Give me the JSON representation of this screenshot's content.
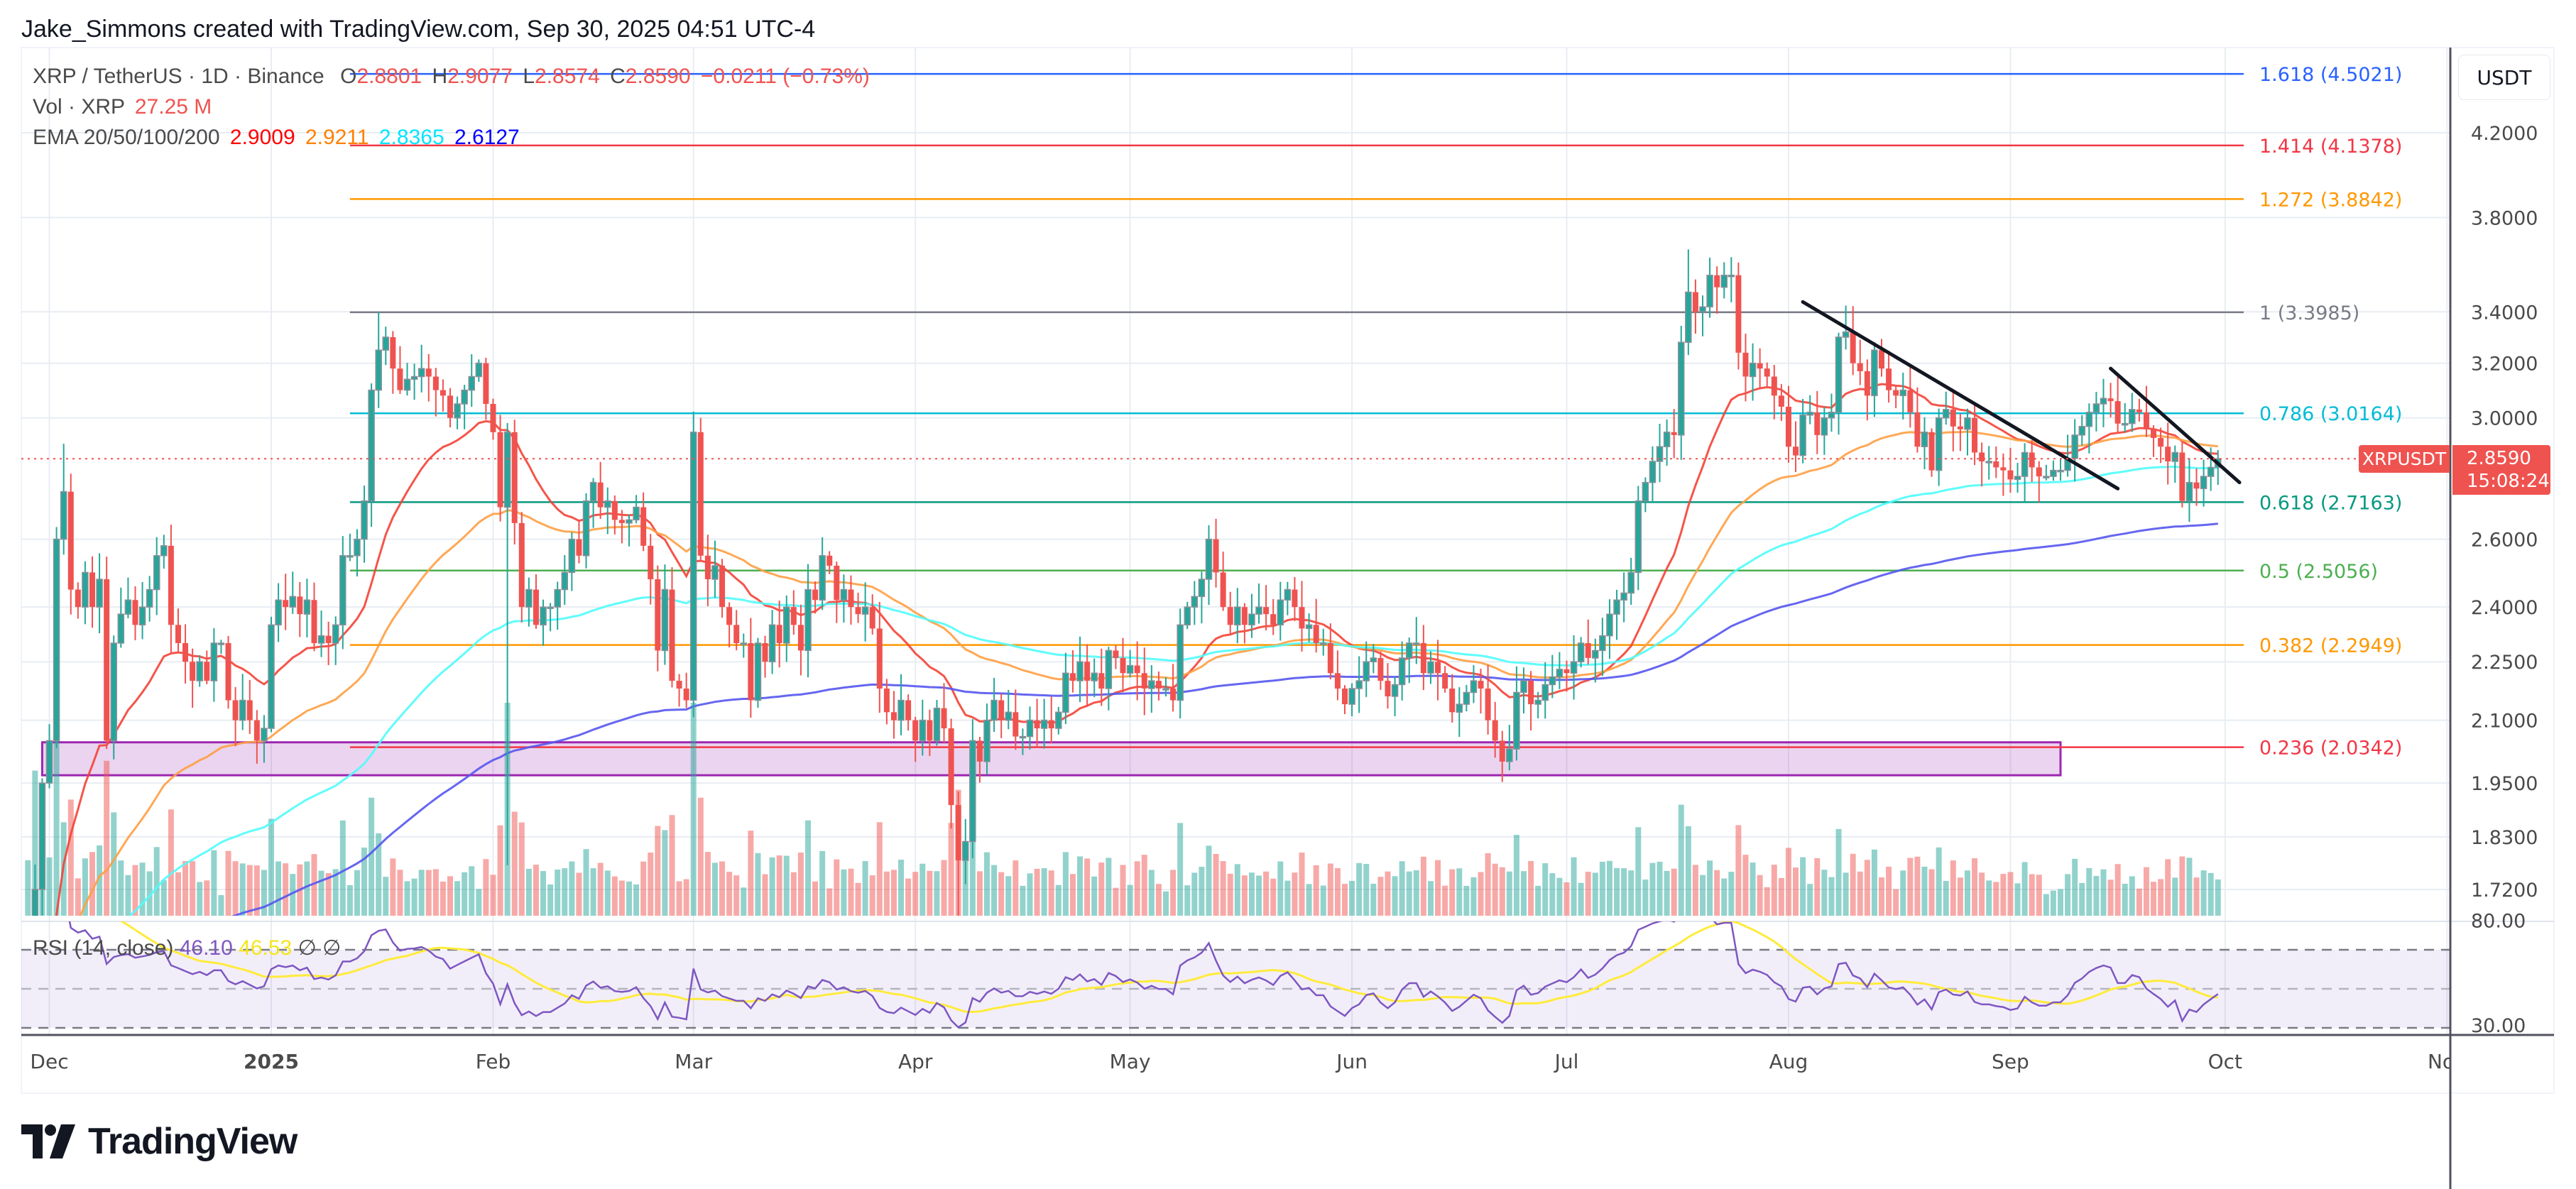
{
  "credit": "Jake_Simmons created with TradingView.com, Sep 30, 2025 04:51 UTC-4",
  "legend": {
    "symbol": "XRP / TetherUS · 1D · Binance",
    "ohlc": [
      {
        "k": "O",
        "v": "2.8801"
      },
      {
        "k": "H",
        "v": "2.9077"
      },
      {
        "k": "L",
        "v": "2.8574"
      },
      {
        "k": "C",
        "v": "2.8590"
      }
    ],
    "change": "−0.0211 (−0.73%)",
    "vol_label": "Vol · XRP",
    "vol_value": "27.25 M",
    "ema_label": "EMA 20/50/100/200",
    "ema_values": [
      {
        "v": "2.9009",
        "color": "#ff0000"
      },
      {
        "v": "2.9211",
        "color": "#ff8000"
      },
      {
        "v": "2.8365",
        "color": "#00e5ff"
      },
      {
        "v": "2.6127",
        "color": "#0000ff"
      }
    ]
  },
  "rsi_legend": {
    "label": "RSI (14, close)",
    "rsi": "46.10",
    "ma": "46.53",
    "n1": "∅",
    "n2": "∅"
  },
  "axis": {
    "currency": "USDT",
    "symbol_tag": "XRPUSDT",
    "last_price": "2.8590",
    "countdown": "15:08:24"
  },
  "logo": "TradingView",
  "colors": {
    "up": "#26a69a",
    "down": "#ef5350",
    "ema20": "#f44336",
    "ema50": "#ff9f43",
    "ema100": "#4ffcfc",
    "ema200": "#5555f0",
    "rsi": "#7e57c2",
    "rsi_ma": "#ffeb3b"
  },
  "chart_data": {
    "type": "candlestick",
    "y_scale": "log",
    "ylim": [
      1.65,
      4.6
    ],
    "grid": true,
    "y_ticks": [
      "4.2000",
      "3.8000",
      "3.4000",
      "3.2000",
      "3.0000",
      "2.6000",
      "2.4000",
      "2.2500",
      "2.1000",
      "1.9500",
      "1.8300",
      "1.7200"
    ],
    "x_ticks": [
      {
        "label": "Dec",
        "date": "2024-12-01"
      },
      {
        "label": "2025",
        "date": "2025-01-01"
      },
      {
        "label": "Feb",
        "date": "2025-02-01"
      },
      {
        "label": "Mar",
        "date": "2025-03-01"
      },
      {
        "label": "Apr",
        "date": "2025-04-01"
      },
      {
        "label": "May",
        "date": "2025-05-01"
      },
      {
        "label": "Jun",
        "date": "2025-06-01"
      },
      {
        "label": "Jul",
        "date": "2025-07-01"
      },
      {
        "label": "Aug",
        "date": "2025-08-01"
      },
      {
        "label": "Sep",
        "date": "2025-09-01"
      },
      {
        "label": "Oct",
        "date": "2025-10-01"
      },
      {
        "label": "Nov",
        "date": "2025-11-01"
      }
    ],
    "start": "2024-11-28",
    "close": [
      1.45,
      1.72,
      1.95,
      2.05,
      2.6,
      2.75,
      2.45,
      2.4,
      2.5,
      2.4,
      2.48,
      2.05,
      2.3,
      2.38,
      2.42,
      2.35,
      2.4,
      2.45,
      2.55,
      2.58,
      2.35,
      2.3,
      2.25,
      2.2,
      2.25,
      2.2,
      2.3,
      2.3,
      2.15,
      2.1,
      2.15,
      2.1,
      2.05,
      2.08,
      2.35,
      2.42,
      2.4,
      2.43,
      2.38,
      2.42,
      2.3,
      2.32,
      2.3,
      2.35,
      2.55,
      2.55,
      2.6,
      2.72,
      3.1,
      3.25,
      3.3,
      3.18,
      3.1,
      3.14,
      3.15,
      3.18,
      3.15,
      3.1,
      3.08,
      3.0,
      3.05,
      3.1,
      3.15,
      3.2,
      3.05,
      2.95,
      2.7,
      2.95,
      2.65,
      2.4,
      2.45,
      2.35,
      2.4,
      2.4,
      2.45,
      2.5,
      2.6,
      2.55,
      2.72,
      2.78,
      2.7,
      2.72,
      2.66,
      2.65,
      2.66,
      2.7,
      2.58,
      2.48,
      2.28,
      2.45,
      2.2,
      2.18,
      2.15,
      2.95,
      2.55,
      2.48,
      2.52,
      2.4,
      2.35,
      2.3,
      2.3,
      2.15,
      2.3,
      2.25,
      2.35,
      2.3,
      2.4,
      2.35,
      2.28,
      2.45,
      2.42,
      2.55,
      2.52,
      2.42,
      2.45,
      2.4,
      2.38,
      2.4,
      2.34,
      2.18,
      2.12,
      2.1,
      2.15,
      2.1,
      2.05,
      2.1,
      2.05,
      2.13,
      2.08,
      1.9,
      1.78,
      1.82,
      2.05,
      2.0,
      2.1,
      2.15,
      2.1,
      2.12,
      2.06,
      2.06,
      2.1,
      2.08,
      2.1,
      2.08,
      2.12,
      2.22,
      2.2,
      2.25,
      2.2,
      2.22,
      2.18,
      2.28,
      2.26,
      2.22,
      2.24,
      2.22,
      2.18,
      2.2,
      2.18,
      2.18,
      2.15,
      2.35,
      2.4,
      2.43,
      2.48,
      2.6,
      2.5,
      2.4,
      2.35,
      2.4,
      2.35,
      2.38,
      2.4,
      2.38,
      2.35,
      2.42,
      2.45,
      2.4,
      2.34,
      2.35,
      2.3,
      2.3,
      2.22,
      2.18,
      2.14,
      2.18,
      2.2,
      2.25,
      2.26,
      2.2,
      2.16,
      2.19,
      2.26,
      2.3,
      2.3,
      2.22,
      2.25,
      2.22,
      2.18,
      2.12,
      2.14,
      2.17,
      2.2,
      2.18,
      2.1,
      2.05,
      2.0,
      2.03,
      2.17,
      2.2,
      2.14,
      2.15,
      2.19,
      2.21,
      2.23,
      2.22,
      2.25,
      2.3,
      2.26,
      2.28,
      2.32,
      2.38,
      2.42,
      2.44,
      2.5,
      2.72,
      2.78,
      2.85,
      2.9,
      2.95,
      2.94,
      3.28,
      3.48,
      3.4,
      3.42,
      3.55,
      3.5,
      3.55,
      3.55,
      3.24,
      3.15,
      3.2,
      3.18,
      3.15,
      3.08,
      3.04,
      2.9,
      2.87,
      3.01,
      3.02,
      2.94,
      3.0,
      3.02,
      3.3,
      3.32,
      3.2,
      3.17,
      3.08,
      3.25,
      3.18,
      3.1,
      3.08,
      3.1,
      3.02,
      2.9,
      2.95,
      2.82,
      3.0,
      3.03,
      2.97,
      2.96,
      3.0,
      2.88,
      2.85,
      2.85,
      2.83,
      2.82,
      2.79,
      2.8,
      2.88,
      2.83,
      2.8,
      2.8,
      2.82,
      2.82,
      2.86,
      2.94,
      2.97,
      3.02,
      3.05,
      3.07,
      3.06,
      2.98,
      2.98,
      3.03,
      3.02,
      2.96,
      2.93,
      2.9,
      2.85,
      2.88,
      2.72,
      2.78,
      2.76,
      2.8,
      2.83,
      2.859
    ],
    "extremes": [
      {
        "date": "2024-12-03",
        "high": 2.91
      },
      {
        "date": "2025-01-16",
        "high": 3.4
      },
      {
        "date": "2025-02-03",
        "low": 1.77
      },
      {
        "date": "2025-03-02",
        "high": 3.0
      },
      {
        "date": "2025-04-07",
        "low": 1.61
      },
      {
        "date": "2025-07-18",
        "high": 3.66
      }
    ],
    "fibonacci": [
      {
        "label": "1.618 (4.5021)",
        "price": 4.5021,
        "color": "#2962ff"
      },
      {
        "label": "1.414 (4.1378)",
        "price": 4.1378,
        "color": "#f23645"
      },
      {
        "label": "1.272 (3.8842)",
        "price": 3.8842,
        "color": "#ff9800"
      },
      {
        "label": "1 (3.3985)",
        "price": 3.3985,
        "color": "#787b86"
      },
      {
        "label": "0.786 (3.0164)",
        "price": 3.0164,
        "color": "#00bcd4"
      },
      {
        "label": "0.618 (2.7163)",
        "price": 2.7163,
        "color": "#089981"
      },
      {
        "label": "0.5 (2.5056)",
        "price": 2.5056,
        "color": "#4caf50"
      },
      {
        "label": "0.382 (2.2949)",
        "price": 2.2949,
        "color": "#ff9800"
      },
      {
        "label": "0.236 (2.0342)",
        "price": 2.0342,
        "color": "#f23645"
      }
    ],
    "fib_start": "2025-01-12",
    "support_zone": {
      "from": "2024-11-30",
      "to": "2025-09-08",
      "low": 1.968,
      "high": 2.046,
      "color": "#9c27b0"
    },
    "trendlines": [
      {
        "from": {
          "date": "2025-08-03",
          "price": 3.44
        },
        "to": {
          "date": "2025-09-16",
          "price": 2.76
        }
      },
      {
        "from": {
          "date": "2025-09-15",
          "price": 3.18
        },
        "to": {
          "date": "2025-10-03",
          "price": 2.78
        }
      }
    ],
    "rsi": {
      "length": 14,
      "ma_length": 14,
      "upper": 70,
      "middle": 50,
      "lower": 30,
      "ticks": [
        "80.00",
        "30.00"
      ]
    }
  }
}
